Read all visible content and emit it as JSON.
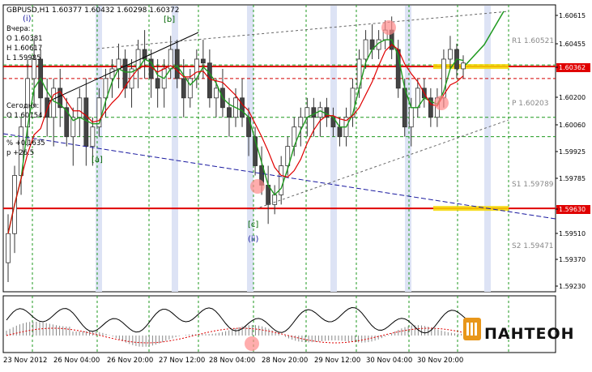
{
  "chart_data": {
    "type": "candlestick",
    "symbol": "GBPUSD",
    "timeframe": "H1",
    "ohlc": {
      "open": "1.60377",
      "high": "1.60432",
      "low": "1.60298",
      "close": "1.60372"
    },
    "header_text": "GBPUSD,H1  1.60377 1.60432 1.60298 1.60372",
    "price_scale": {
      "min": 1.592,
      "max": 1.6068,
      "ticks": [
        "1.60615",
        "1.60455",
        "1.60362",
        "1.60200",
        "1.60060",
        "1.59925",
        "1.59785",
        "1.59630",
        "1.59510",
        "1.59370",
        "1.59230"
      ]
    },
    "current_price": "1.60362",
    "level_price": "1.59630",
    "x_ticks": [
      "23 Nov 2012",
      "26 Nov 04:00",
      "26 Nov 20:00",
      "27 Nov 12:00",
      "28 Nov 04:00",
      "28 Nov 20:00",
      "29 Nov 12:00",
      "30 Nov 04:00",
      "30 Nov 20:00"
    ],
    "pivots": [
      {
        "label": "R1",
        "value": "1.60521"
      },
      {
        "label": "P",
        "value": "1.60203"
      },
      {
        "label": "S1",
        "value": "1.59789"
      },
      {
        "label": "S2",
        "value": "1.59471"
      }
    ],
    "wave_labels": [
      "(i)",
      "[b]",
      "[a]",
      "[c]",
      "(ii)"
    ],
    "yesterday_label": "Вчера:",
    "yesterday_values": [
      "O 1.60381",
      "H 1.60617",
      "L 1.59985"
    ],
    "today_label": "Сегодня:",
    "today_values": [
      "O 1.60154",
      "% +0.1635",
      "p +26.5"
    ],
    "candles": [
      [
        1.5935,
        1.596,
        1.5925,
        1.595
      ],
      [
        1.595,
        1.5985,
        1.594,
        1.598
      ],
      [
        1.598,
        1.601,
        1.597,
        1.6005
      ],
      [
        1.6005,
        1.604,
        1.5995,
        1.603
      ],
      [
        1.603,
        1.605,
        1.6015,
        1.604
      ],
      [
        1.604,
        1.6045,
        1.601,
        1.602
      ],
      [
        1.602,
        1.603,
        1.6,
        1.601
      ],
      [
        1.601,
        1.603,
        1.5995,
        1.6025
      ],
      [
        1.6025,
        1.6035,
        1.6005,
        1.6015
      ],
      [
        1.6015,
        1.602,
        1.5995,
        1.6
      ],
      [
        1.6,
        1.6015,
        1.5985,
        1.601
      ],
      [
        1.601,
        1.6025,
        1.6,
        1.602
      ],
      [
        1.602,
        1.603,
        1.5985,
        1.5995
      ],
      [
        1.5995,
        1.601,
        1.5985,
        1.6005
      ],
      [
        1.6005,
        1.6025,
        1.6,
        1.602
      ],
      [
        1.602,
        1.6035,
        1.601,
        1.603
      ],
      [
        1.603,
        1.604,
        1.602,
        1.6035
      ],
      [
        1.6035,
        1.6048,
        1.6025,
        1.604
      ],
      [
        1.604,
        1.6045,
        1.602,
        1.6025
      ],
      [
        1.6025,
        1.604,
        1.6015,
        1.6035
      ],
      [
        1.6035,
        1.605,
        1.6025,
        1.6045
      ],
      [
        1.6045,
        1.6055,
        1.603,
        1.604
      ],
      [
        1.604,
        1.6045,
        1.602,
        1.603
      ],
      [
        1.603,
        1.604,
        1.6015,
        1.6025
      ],
      [
        1.6025,
        1.604,
        1.6015,
        1.6035
      ],
      [
        1.6035,
        1.6052,
        1.603,
        1.6045
      ],
      [
        1.6045,
        1.605,
        1.6025,
        1.603
      ],
      [
        1.603,
        1.604,
        1.601,
        1.602
      ],
      [
        1.602,
        1.6035,
        1.6015,
        1.603
      ],
      [
        1.603,
        1.6045,
        1.6025,
        1.604
      ],
      [
        1.604,
        1.605,
        1.603,
        1.6038
      ],
      [
        1.6038,
        1.6045,
        1.6015,
        1.602
      ],
      [
        1.602,
        1.603,
        1.601,
        1.6025
      ],
      [
        1.6025,
        1.6035,
        1.601,
        1.6015
      ],
      [
        1.6015,
        1.602,
        1.6,
        1.601
      ],
      [
        1.601,
        1.6025,
        1.6005,
        1.602
      ],
      [
        1.602,
        1.603,
        1.6005,
        1.601
      ],
      [
        1.601,
        1.6015,
        1.599,
        1.6
      ],
      [
        1.6,
        1.6005,
        1.598,
        1.5985
      ],
      [
        1.5985,
        1.5995,
        1.597,
        1.5975
      ],
      [
        1.5975,
        1.5985,
        1.5955,
        1.5965
      ],
      [
        1.5965,
        1.5975,
        1.596,
        1.597
      ],
      [
        1.597,
        1.599,
        1.5965,
        1.5985
      ],
      [
        1.5985,
        1.6,
        1.598,
        1.5995
      ],
      [
        1.5995,
        1.601,
        1.599,
        1.6005
      ],
      [
        1.6005,
        1.6015,
        1.5995,
        1.601
      ],
      [
        1.601,
        1.602,
        1.6,
        1.6015
      ],
      [
        1.6015,
        1.602,
        1.6,
        1.601
      ],
      [
        1.601,
        1.6018,
        1.6,
        1.6015
      ],
      [
        1.6015,
        1.602,
        1.6005,
        1.601
      ],
      [
        1.601,
        1.6015,
        1.6,
        1.6005
      ],
      [
        1.6005,
        1.601,
        1.5995,
        1.6
      ],
      [
        1.6,
        1.6015,
        1.5995,
        1.601
      ],
      [
        1.601,
        1.603,
        1.6005,
        1.6025
      ],
      [
        1.6025,
        1.6045,
        1.602,
        1.604
      ],
      [
        1.604,
        1.6055,
        1.6035,
        1.605
      ],
      [
        1.605,
        1.6058,
        1.604,
        1.6045
      ],
      [
        1.6045,
        1.6055,
        1.604,
        1.605
      ],
      [
        1.605,
        1.606,
        1.6045,
        1.6055
      ],
      [
        1.6055,
        1.6062,
        1.604,
        1.6045
      ],
      [
        1.6045,
        1.605,
        1.602,
        1.6025
      ],
      [
        1.6025,
        1.603,
        1.6,
        1.6005
      ],
      [
        1.6005,
        1.602,
        1.5995,
        1.6015
      ],
      [
        1.6015,
        1.603,
        1.601,
        1.6025
      ],
      [
        1.6025,
        1.603,
        1.6015,
        1.602
      ],
      [
        1.602,
        1.6025,
        1.6005,
        1.601
      ],
      [
        1.601,
        1.6025,
        1.6005,
        1.602
      ],
      [
        1.602,
        1.6045,
        1.6015,
        1.604
      ],
      [
        1.604,
        1.6052,
        1.6035,
        1.6045
      ],
      [
        1.6045,
        1.6048,
        1.603,
        1.6035
      ],
      [
        1.6035,
        1.6042,
        1.603,
        1.6038
      ]
    ]
  }
}
